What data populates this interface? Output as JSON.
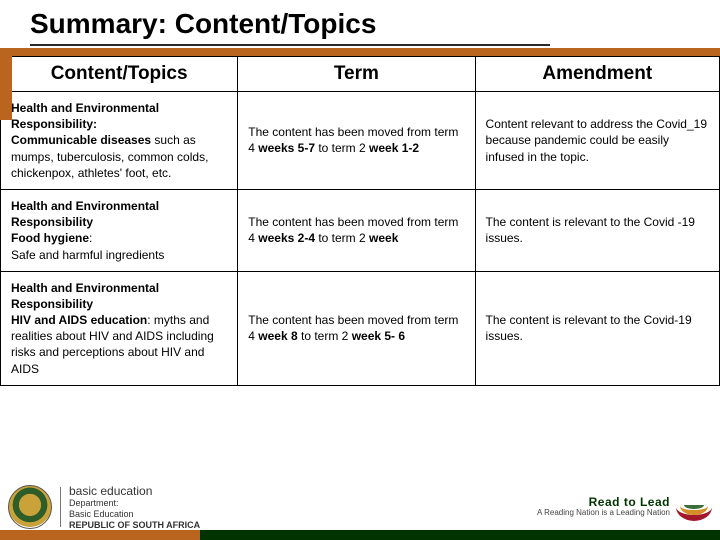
{
  "colors": {
    "accent_orange": "#b9651f",
    "accent_green": "#003300",
    "border": "#000000",
    "text": "#000000",
    "background": "#ffffff"
  },
  "typography": {
    "title_fontsize": 28,
    "header_fontsize": 19,
    "body_fontsize": 12,
    "footer_fontsize": 9,
    "family": "Arial"
  },
  "title": "Summary: Content/Topics",
  "table": {
    "headers": {
      "col1": "Content/Topics",
      "col2": "Term",
      "col3": "Amendment"
    },
    "column_widths": [
      "33%",
      "33%",
      "34%"
    ],
    "rows": [
      {
        "topic_bold1": "Health and Environmental Responsibility:",
        "topic_bold2": "Communicable diseases",
        "topic_rest": " such as mumps, tuberculosis, common colds, chickenpox, athletes' foot, etc.",
        "term_pre": "The content has been moved from term 4 ",
        "term_bold": "weeks 5-7",
        "term_mid": " to term 2 ",
        "term_bold2": "week 1-2",
        "amend": "Content relevant to address the Covid_19  because pandemic could be easily infused in the topic."
      },
      {
        "topic_bold1": "Health and Environmental Responsibility",
        "topic_bold2": "Food hygiene",
        "topic_rest": ":\nSafe and harmful ingredients",
        "term_pre": "The content has been moved from term 4 ",
        "term_bold": "weeks 2-4 ",
        "term_mid": " to term 2 ",
        "term_bold2": "week",
        "amend": "The content is relevant to the Covid -19 issues."
      },
      {
        "topic_bold1": "Health and Environmental Responsibility",
        "topic_bold2": "HIV and AIDS education",
        "topic_rest": ": myths and realities about HIV and AIDS including risks and perceptions about HIV and AIDS",
        "term_pre": "The content has been moved from term 4 ",
        "term_bold": "week 8",
        "term_mid": " to term 2 ",
        "term_bold2": "week 5- 6",
        "amend": "The content is relevant to the Covid-19 issues."
      }
    ]
  },
  "footer": {
    "dept_line1": "basic education",
    "dept_line2": "Department:",
    "dept_line3": "Basic Education",
    "dept_line4": "REPUBLIC OF SOUTH AFRICA",
    "read_main": "Read to Lead",
    "read_sub": "A Reading Nation is a Leading Nation"
  }
}
